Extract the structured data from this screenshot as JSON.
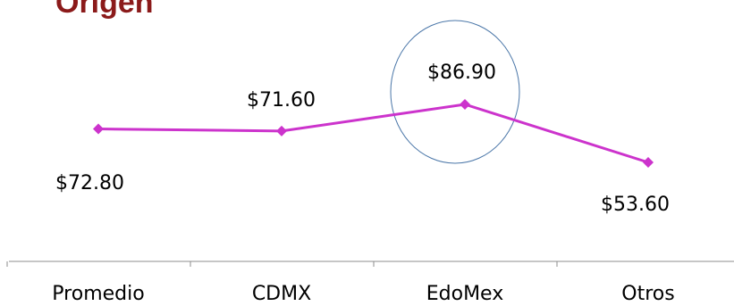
{
  "colors": {
    "title": "#8B1A1A",
    "line": "#CC33CC",
    "axis": "#8C8C8C",
    "highlight_circle": "#4A76A8",
    "text": "#000000"
  },
  "chart_data": {
    "type": "line",
    "title": "Origen",
    "categories": [
      "Promedio",
      "CDMX",
      "EdoMex",
      "Otros"
    ],
    "values": [
      72.8,
      71.6,
      86.9,
      53.6
    ],
    "data_labels": [
      "$72.80",
      "$71.60",
      "$86.90",
      "$53.60"
    ],
    "highlighted_category": "EdoMex",
    "marker": "diamond",
    "grid": false,
    "legend": "none"
  }
}
